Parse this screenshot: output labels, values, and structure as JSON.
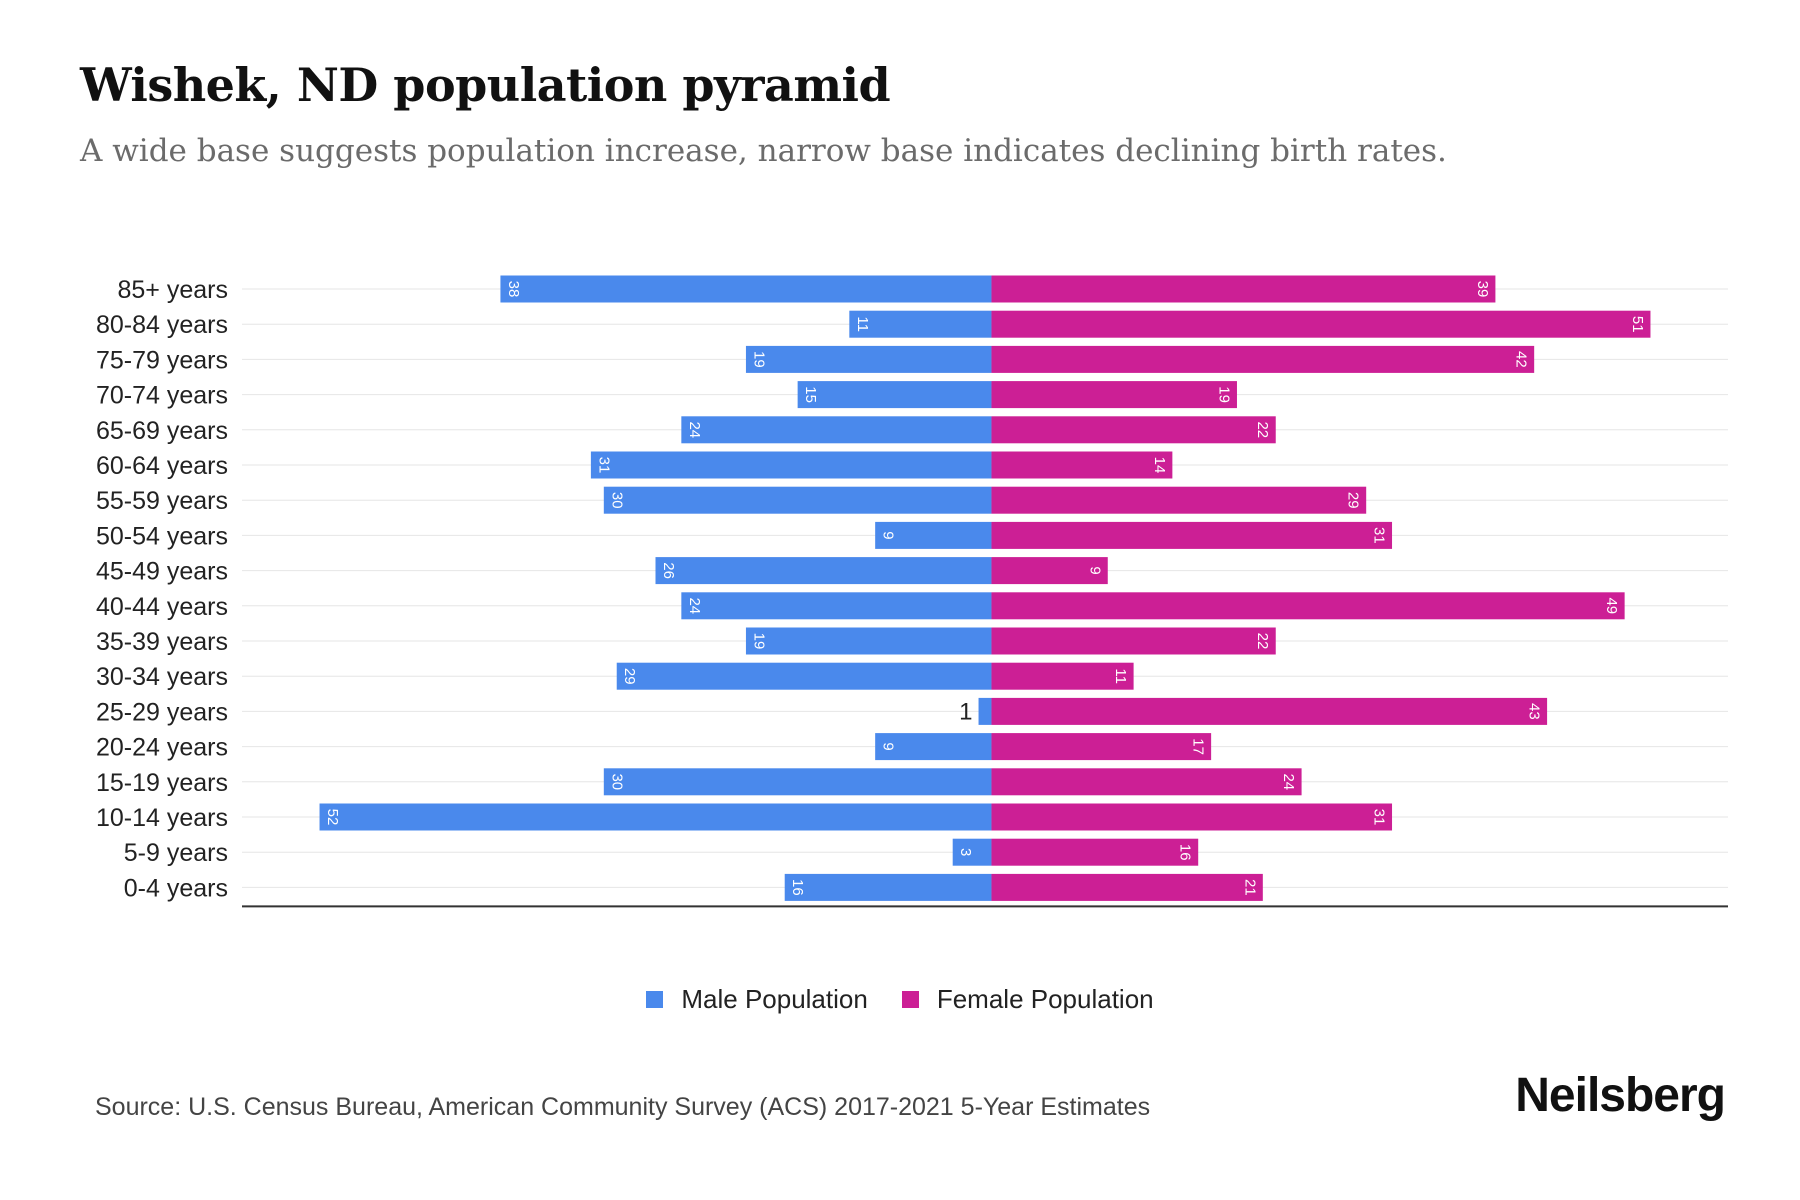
{
  "title": "Wishek, ND population pyramid",
  "subtitle": "A wide base suggests population increase, narrow base indicates declining birth rates.",
  "source": "Source: U.S. Census Bureau, American Community Survey (ACS) 2017-2021 5-Year Estimates",
  "brand": "Neilsberg",
  "legend": {
    "male": "Male Population",
    "female": "Female Population"
  },
  "colors": {
    "male": "#4a89ec",
    "female": "#cc1f95",
    "grid": "#e6e6e6",
    "axis": "#333333"
  },
  "chart_data": {
    "type": "bar",
    "orientation": "horizontal",
    "title": "Wishek, ND population pyramid",
    "categories": [
      "85+ years",
      "80-84 years",
      "75-79 years",
      "70-74 years",
      "65-69 years",
      "60-64 years",
      "55-59 years",
      "50-54 years",
      "45-49 years",
      "40-44 years",
      "35-39 years",
      "30-34 years",
      "25-29 years",
      "20-24 years",
      "15-19 years",
      "10-14 years",
      "5-9 years",
      "0-4 years"
    ],
    "series": [
      {
        "name": "Male Population",
        "values": [
          38,
          11,
          19,
          15,
          24,
          31,
          30,
          9,
          26,
          24,
          19,
          29,
          1,
          9,
          30,
          52,
          3,
          16
        ]
      },
      {
        "name": "Female Population",
        "values": [
          39,
          51,
          42,
          19,
          22,
          14,
          29,
          31,
          9,
          49,
          22,
          11,
          43,
          17,
          24,
          31,
          16,
          21
        ]
      }
    ],
    "xlim": [
      -58,
      57
    ],
    "grid": true,
    "legend_position": "bottom-center"
  }
}
